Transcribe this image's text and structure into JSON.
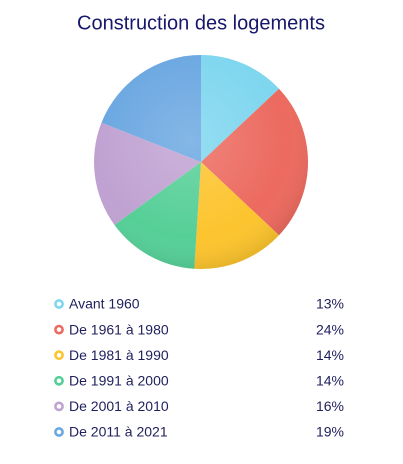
{
  "chart_data": {
    "type": "pie",
    "title": "Construction des logements",
    "categories": [
      "Avant 1960",
      "De 1961 à 1980",
      "De 1981 à 1990",
      "De 1991 à 2000",
      "De 2001 à 2010",
      "De 2011 à 2021"
    ],
    "values": [
      13,
      24,
      14,
      14,
      16,
      19
    ],
    "value_labels": [
      "13%",
      "24%",
      "14%",
      "14%",
      "16%",
      "19%"
    ],
    "colors": [
      "#7ed6ef",
      "#ec6a5f",
      "#fcc42e",
      "#56cf97",
      "#c0a2d2",
      "#6aa7e1"
    ]
  }
}
